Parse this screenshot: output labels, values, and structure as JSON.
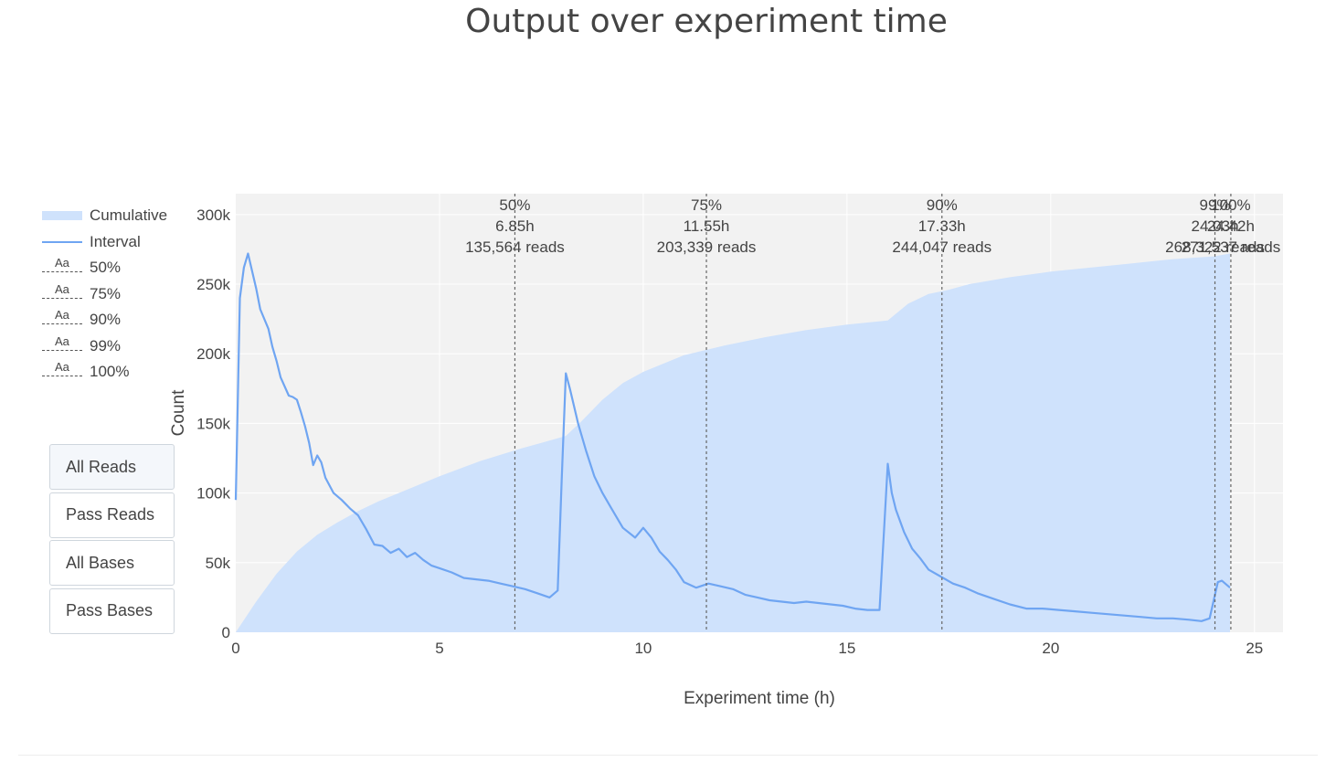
{
  "chart_data": {
    "type": "area",
    "title": "Output over experiment time",
    "xlabel": "Experiment time (h)",
    "ylabel": "Count",
    "xlim": [
      0,
      25.7
    ],
    "ylim": [
      0,
      315000
    ],
    "x_ticks": [
      0,
      5,
      10,
      15,
      20,
      25
    ],
    "y_ticks": [
      0,
      50000,
      100000,
      150000,
      200000,
      250000,
      300000
    ],
    "y_tick_labels": [
      "0",
      "50k",
      "100k",
      "150k",
      "200k",
      "250k",
      "300k"
    ],
    "grid": true,
    "legend_position": "left",
    "series": [
      {
        "name": "Cumulative",
        "kind": "area",
        "color": "#cfe2fc",
        "x": [
          0,
          0.5,
          1,
          1.5,
          2,
          2.5,
          3,
          3.5,
          4,
          5,
          6,
          7,
          7.5,
          8.1,
          8.5,
          9,
          9.5,
          10,
          11,
          12,
          13,
          14,
          15,
          16,
          16.5,
          17,
          17.5,
          18,
          19,
          20,
          21,
          22,
          23,
          24,
          24.4
        ],
        "values": [
          0,
          22000,
          42000,
          58000,
          70000,
          79000,
          87000,
          94000,
          100000,
          112000,
          123000,
          132000,
          136000,
          141000,
          152000,
          167000,
          179000,
          187000,
          199000,
          206000,
          212000,
          217000,
          221000,
          224000,
          236000,
          243000,
          246000,
          250000,
          255000,
          259000,
          262000,
          265000,
          268000,
          270000,
          272000
        ]
      },
      {
        "name": "Interval",
        "kind": "line",
        "color": "#6fa5f2",
        "x": [
          0,
          0.1,
          0.2,
          0.3,
          0.5,
          0.6,
          0.8,
          0.9,
          1.0,
          1.1,
          1.3,
          1.4,
          1.5,
          1.6,
          1.7,
          1.8,
          1.9,
          2.0,
          2.1,
          2.2,
          2.4,
          2.6,
          2.8,
          3.0,
          3.2,
          3.4,
          3.6,
          3.8,
          4.0,
          4.2,
          4.4,
          4.6,
          4.8,
          5.0,
          5.3,
          5.6,
          5.9,
          6.2,
          6.5,
          6.8,
          7.1,
          7.4,
          7.7,
          7.9,
          8.0,
          8.1,
          8.2,
          8.4,
          8.6,
          8.8,
          9.0,
          9.2,
          9.5,
          9.8,
          10.0,
          10.2,
          10.4,
          10.6,
          10.8,
          11.0,
          11.3,
          11.6,
          11.9,
          12.2,
          12.5,
          12.8,
          13.1,
          13.4,
          13.7,
          14.0,
          14.3,
          14.6,
          14.9,
          15.2,
          15.5,
          15.8,
          16.0,
          16.1,
          16.2,
          16.4,
          16.6,
          16.8,
          17.0,
          17.3,
          17.6,
          17.9,
          18.2,
          18.6,
          19.0,
          19.4,
          19.8,
          20.2,
          20.6,
          21.0,
          21.4,
          21.8,
          22.2,
          22.6,
          23.0,
          23.4,
          23.7,
          23.9,
          24.1,
          24.2,
          24.4
        ],
        "values": [
          95000,
          240000,
          262000,
          272000,
          247000,
          232000,
          218000,
          205000,
          195000,
          183000,
          170000,
          169000,
          167000,
          158000,
          148000,
          136000,
          120000,
          127000,
          122000,
          111000,
          100000,
          95000,
          89000,
          84000,
          74000,
          63000,
          62000,
          57000,
          60000,
          54000,
          57000,
          52000,
          48000,
          46000,
          43000,
          39000,
          38000,
          37000,
          35000,
          33000,
          31000,
          28000,
          25000,
          30000,
          110000,
          186000,
          175000,
          150000,
          130000,
          112000,
          100000,
          90000,
          75000,
          68000,
          75000,
          68000,
          58000,
          52000,
          45000,
          36000,
          32000,
          35000,
          33000,
          31000,
          27000,
          25000,
          23000,
          22000,
          21000,
          22000,
          21000,
          20000,
          19000,
          17000,
          16000,
          16000,
          121000,
          100000,
          88000,
          72000,
          60000,
          53000,
          45000,
          40000,
          35000,
          32000,
          28000,
          24000,
          20000,
          17000,
          17000,
          16000,
          15000,
          14000,
          13000,
          12000,
          11000,
          10000,
          10000,
          9000,
          8000,
          10000,
          36000,
          37000,
          32000
        ]
      }
    ],
    "thresholds": [
      {
        "name": "50%",
        "x": 6.85,
        "line1": "50%",
        "line2": "6.85h",
        "line3": "135,564 reads"
      },
      {
        "name": "75%",
        "x": 11.55,
        "line1": "75%",
        "line2": "11.55h",
        "line3": "203,339 reads"
      },
      {
        "name": "90%",
        "x": 17.33,
        "line1": "90%",
        "line2": "17.33h",
        "line3": "244,047 reads"
      },
      {
        "name": "99%",
        "x": 24.03,
        "line1": "99%",
        "line2": "24.03h",
        "line3": "268,322 reads"
      },
      {
        "name": "100%",
        "x": 24.42,
        "line1": "100%",
        "line2": "24.42h",
        "line3": "271,537 reads"
      }
    ]
  },
  "legend": {
    "items": [
      {
        "label": "Cumulative",
        "kind": "area"
      },
      {
        "label": "Interval",
        "kind": "line"
      },
      {
        "label": "50%",
        "kind": "threshold"
      },
      {
        "label": "75%",
        "kind": "threshold"
      },
      {
        "label": "90%",
        "kind": "threshold"
      },
      {
        "label": "99%",
        "kind": "threshold"
      },
      {
        "label": "100%",
        "kind": "threshold"
      }
    ],
    "threshold_glyph": "Aa"
  },
  "buttons": {
    "all_reads": "All Reads",
    "pass_reads": "Pass Reads",
    "all_bases": "All Bases",
    "pass_bases": "Pass Bases"
  },
  "colors": {
    "plot_background": "#f2f2f2",
    "grid": "#ffffff",
    "area_fill": "#cfe2fc",
    "interval_line": "#6fa5f2",
    "threshold_line": "#666666"
  }
}
